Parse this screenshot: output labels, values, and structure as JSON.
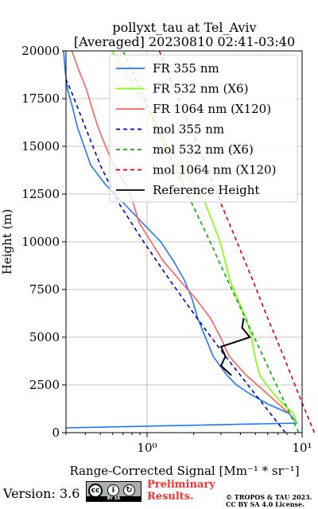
{
  "chart_data": {
    "type": "line",
    "title": "pollyxt_tau at Tel_Aviv",
    "subtitle": "[Averaged] 20230810 02:41-03:40",
    "xlabel": "Range-Corrected Signal [Mm⁻¹ * sr⁻¹]",
    "ylabel": "Height (m)",
    "xscale": "log",
    "xlim": [
      0.3,
      10
    ],
    "ylim": [
      0,
      20000
    ],
    "x_ticks": [
      "10⁰",
      "10¹"
    ],
    "y_ticks": [
      0,
      2500,
      5000,
      7500,
      10000,
      12500,
      15000,
      17500,
      20000
    ],
    "grid": true,
    "legend_position": "upper right",
    "series": [
      {
        "name": "FR 355 nm",
        "color": "#1f77f4",
        "style": "solid",
        "height": [
          250,
          500,
          1000,
          1500,
          2000,
          2500,
          3000,
          4000,
          5000,
          6000,
          7000,
          8000,
          9000,
          10000,
          11000,
          12000,
          13000,
          14000,
          15000,
          16000,
          17000,
          18000,
          19000,
          20000
        ],
        "value": [
          0.3,
          9.0,
          8.0,
          6.0,
          4.8,
          3.9,
          3.3,
          2.6,
          2.3,
          2.1,
          2.0,
          1.8,
          1.5,
          1.2,
          0.9,
          0.7,
          0.55,
          0.45,
          0.4,
          0.35,
          0.32,
          0.3,
          0.3,
          0.3
        ]
      },
      {
        "name": "FR 532 nm (X6)",
        "color": "#7fff00",
        "style": "solid",
        "height": [
          500,
          1000,
          1500,
          2000,
          3000,
          4000,
          5000,
          6000,
          7000,
          8000,
          9000,
          10000,
          11000,
          12000,
          13000,
          14000,
          15000,
          16000,
          17000,
          18000,
          19000,
          20000
        ],
        "value": [
          9.0,
          8.5,
          7.5,
          6.8,
          5.5,
          5.0,
          4.6,
          4.2,
          3.8,
          3.5,
          3.3,
          3.0,
          2.6,
          2.3,
          2.0,
          1.7,
          1.4,
          1.2,
          1.0,
          0.8,
          0.7,
          0.6
        ]
      },
      {
        "name": "FR 1064 nm (X120)",
        "color": "#ff5f5f",
        "style": "solid",
        "height": [
          1000,
          2000,
          3000,
          4000,
          5000,
          6000,
          7000,
          8000,
          9000,
          10000,
          11000,
          12000,
          13000,
          14000,
          15000,
          16000,
          17000,
          18000,
          19000,
          20000
        ],
        "value": [
          8.0,
          6.0,
          4.5,
          3.5,
          3.0,
          2.5,
          2.0,
          1.6,
          1.3,
          1.1,
          0.9,
          0.8,
          0.7,
          0.6,
          0.55,
          0.5,
          0.45,
          0.4,
          0.35,
          0.32
        ]
      },
      {
        "name": "mol 355 nm",
        "color": "#0000cd",
        "style": "dashed",
        "height": [
          0,
          2000,
          4000,
          6000,
          8000,
          10000,
          12000,
          14000,
          16000,
          18000,
          18500
        ],
        "value": [
          7.8,
          5.0,
          3.2,
          2.1,
          1.4,
          0.95,
          0.66,
          0.5,
          0.4,
          0.32,
          0.3
        ]
      },
      {
        "name": "mol 532 nm (X6)",
        "color": "#00b000",
        "style": "dashed",
        "height": [
          0,
          2000,
          4000,
          6000,
          8000,
          10000,
          12000,
          14000,
          16000,
          18000,
          20000
        ],
        "value": [
          9.5,
          7.3,
          5.6,
          4.3,
          3.3,
          2.55,
          1.95,
          1.5,
          1.15,
          0.9,
          0.7
        ]
      },
      {
        "name": "mol 1064 nm (X120)",
        "color": "#e00000",
        "style": "dashed",
        "height": [
          0,
          2000,
          4000,
          6000,
          8000,
          10000,
          12000,
          14000,
          16000,
          18000,
          20000
        ],
        "value": [
          12.0,
          9.5,
          7.6,
          6.0,
          4.8,
          3.8,
          3.0,
          2.4,
          1.9,
          1.5,
          1.2
        ]
      },
      {
        "name": "Reference Height",
        "color": "#000000",
        "style": "solid",
        "height": [
          3000,
          3500,
          4000,
          4500,
          5000,
          5500,
          6000
        ],
        "value": [
          3.5,
          3.0,
          3.2,
          3.0,
          4.6,
          4.1,
          4.2
        ]
      }
    ]
  },
  "footer": {
    "version": "Version: 3.6",
    "cc_badge": "BY SA",
    "preliminary": "Preliminary\nResults.",
    "copyright_line1": "© TROPOS & TAU 2023.",
    "copyright_line2": "CC BY SA 4.0 License."
  }
}
